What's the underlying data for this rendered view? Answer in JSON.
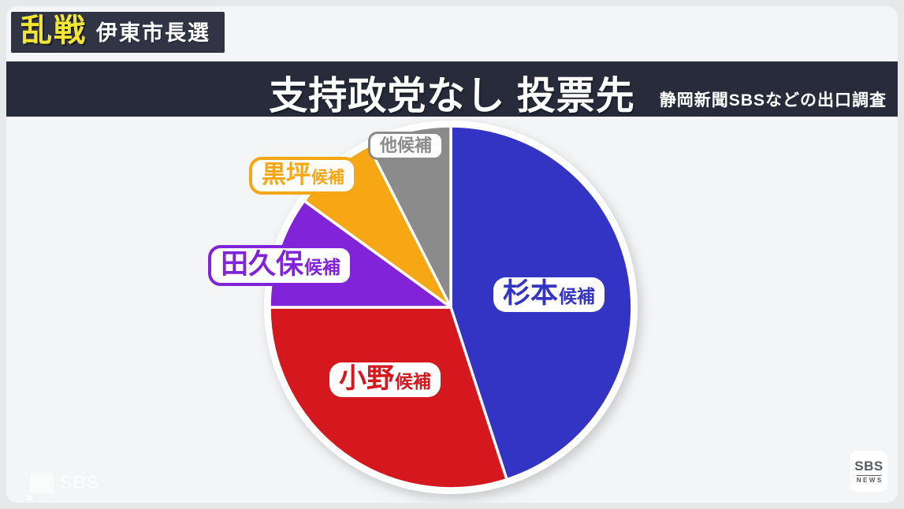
{
  "header": {
    "badge_main": "乱戦",
    "badge_sub": "伊東市長選",
    "title": "支持政党なし 投票先",
    "source": "静岡新聞SBSなどの出口調査"
  },
  "branding": {
    "watermark_text": "SBS",
    "logo_line1": "SBS",
    "logo_line2": "NEWS"
  },
  "colors": {
    "navy_bar": "#272b3a",
    "badge_bg": "#303445",
    "accent_yellow": "#f2e534",
    "page_bg": "#f4f5f7",
    "slice_sugimoto_blue": "#3434c4",
    "slice_ono_red": "#d5171e",
    "slice_takubo_purple": "#8023d9",
    "slice_kurotsubo_orange": "#f6a713",
    "slice_others_gray": "#8b8b8b"
  },
  "chart_data": {
    "type": "pie",
    "title": "支持政党なし 投票先",
    "source_note": "静岡新聞SBSなどの出口調査",
    "start_angle_deg": 0,
    "direction": "clockwise",
    "values_estimated_from_pixels": true,
    "units": "percent_share",
    "slices": [
      {
        "label": "杉本",
        "suffix": "候補",
        "value": 45,
        "color": "#3434c4"
      },
      {
        "label": "小野",
        "suffix": "候補",
        "value": 30,
        "color": "#d5171e"
      },
      {
        "label": "田久保",
        "suffix": "候補",
        "value": 10,
        "color": "#8023d9"
      },
      {
        "label": "黒坪",
        "suffix": "候補",
        "value": 7.5,
        "color": "#f6a713"
      },
      {
        "label": "他候補",
        "suffix": "",
        "value": 7.5,
        "color": "#8b8b8b"
      }
    ]
  }
}
